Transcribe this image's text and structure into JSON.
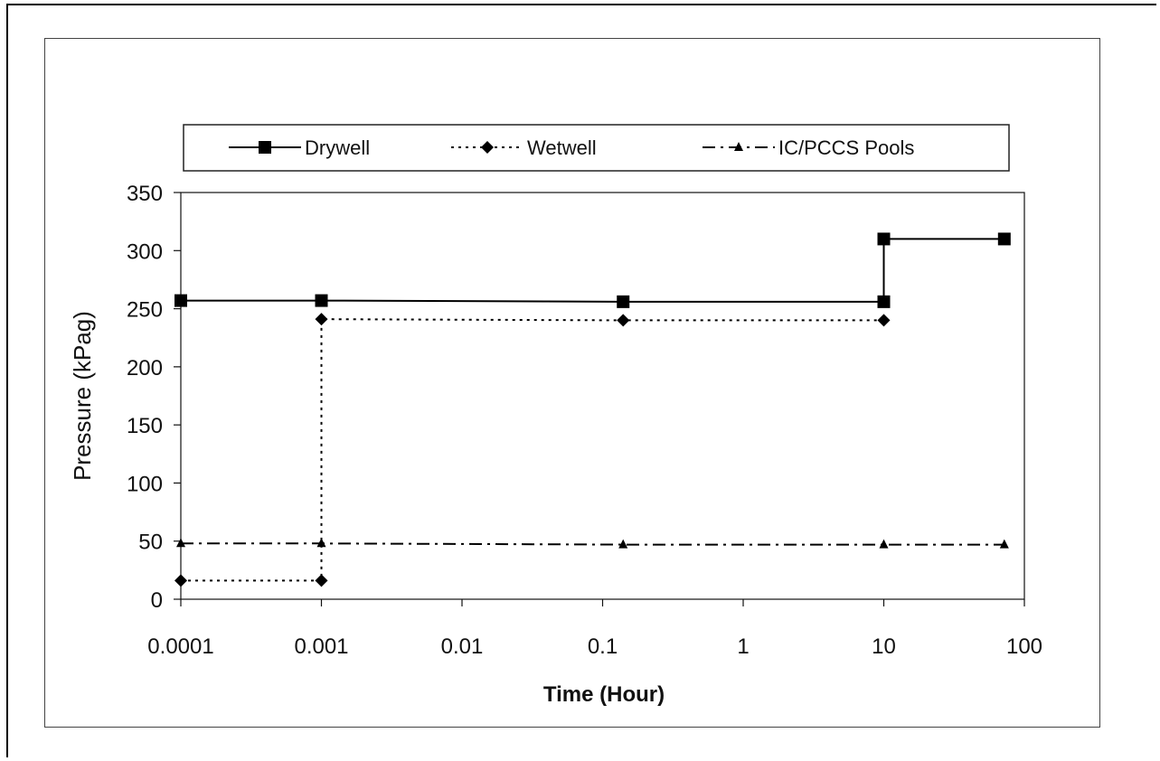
{
  "chart_data": {
    "type": "line",
    "title": "",
    "xlabel": "Time (Hour)",
    "ylabel": "Pressure (kPag)",
    "xscale": "log",
    "xlim": [
      0.0001,
      100
    ],
    "ylim": [
      0,
      350
    ],
    "x_ticks": [
      "0.0001",
      "0.001",
      "0.01",
      "0.1",
      "1",
      "10",
      "100"
    ],
    "y_ticks": [
      "0",
      "50",
      "100",
      "150",
      "200",
      "250",
      "300",
      "350"
    ],
    "grid": false,
    "legend_position": "top",
    "series": [
      {
        "name": "Drywell",
        "line_style": "solid",
        "marker": "square",
        "color": "#000000",
        "x": [
          0.0001,
          0.001,
          0.14,
          10,
          10,
          72
        ],
        "y": [
          257,
          257,
          256,
          256,
          310,
          310
        ]
      },
      {
        "name": "Wetwell",
        "line_style": "dotted",
        "marker": "diamond",
        "color": "#000000",
        "x": [
          0.0001,
          0.001,
          0.001,
          0.14,
          10
        ],
        "y": [
          16,
          16,
          241,
          240,
          240
        ]
      },
      {
        "name": "IC/PCCS Pools",
        "line_style": "dash-dot",
        "marker": "triangle",
        "color": "#000000",
        "x": [
          0.0001,
          0.001,
          0.14,
          10,
          72
        ],
        "y": [
          48,
          48,
          47,
          47,
          47
        ]
      }
    ]
  }
}
